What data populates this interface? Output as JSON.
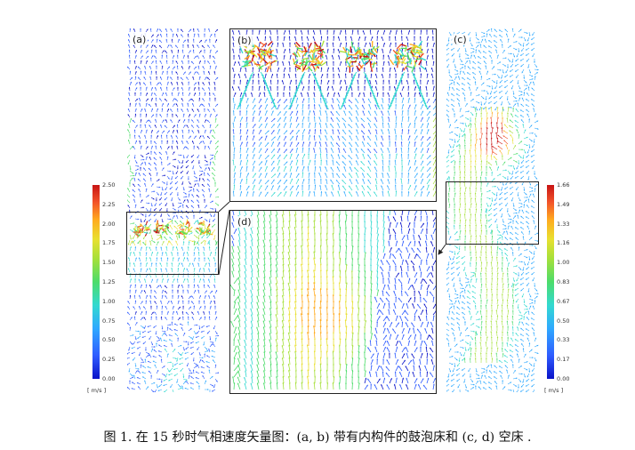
{
  "panels": {
    "a_label": "(a)",
    "b_label": "(b)",
    "c_label": "(c)",
    "d_label": "(d)"
  },
  "colorbar_left": {
    "ticks": [
      "2.50",
      "2.25",
      "2.00",
      "1.75",
      "1.50",
      "1.25",
      "1.00",
      "0.75",
      "0.50",
      "0.25",
      "0.00"
    ],
    "unit": "[ m/s ]"
  },
  "colorbar_right": {
    "ticks": [
      "1.66",
      "1.49",
      "1.33",
      "1.16",
      "1.00",
      "0.83",
      "0.67",
      "0.50",
      "0.33",
      "0.17",
      "0.00"
    ],
    "unit": "[ m/s ]"
  },
  "colors": {
    "scale": [
      "#0a13c8",
      "#2f5cff",
      "#2fa9ff",
      "#33d9d0",
      "#4cdc6a",
      "#a6e03a",
      "#e8e030",
      "#ffab1f",
      "#f2542a",
      "#c81414"
    ]
  },
  "caption": "图 1. 在 15 秒时气相速度矢量图：(a, b) 带有内构件的鼓泡床和 (c, d) 空床 ."
}
